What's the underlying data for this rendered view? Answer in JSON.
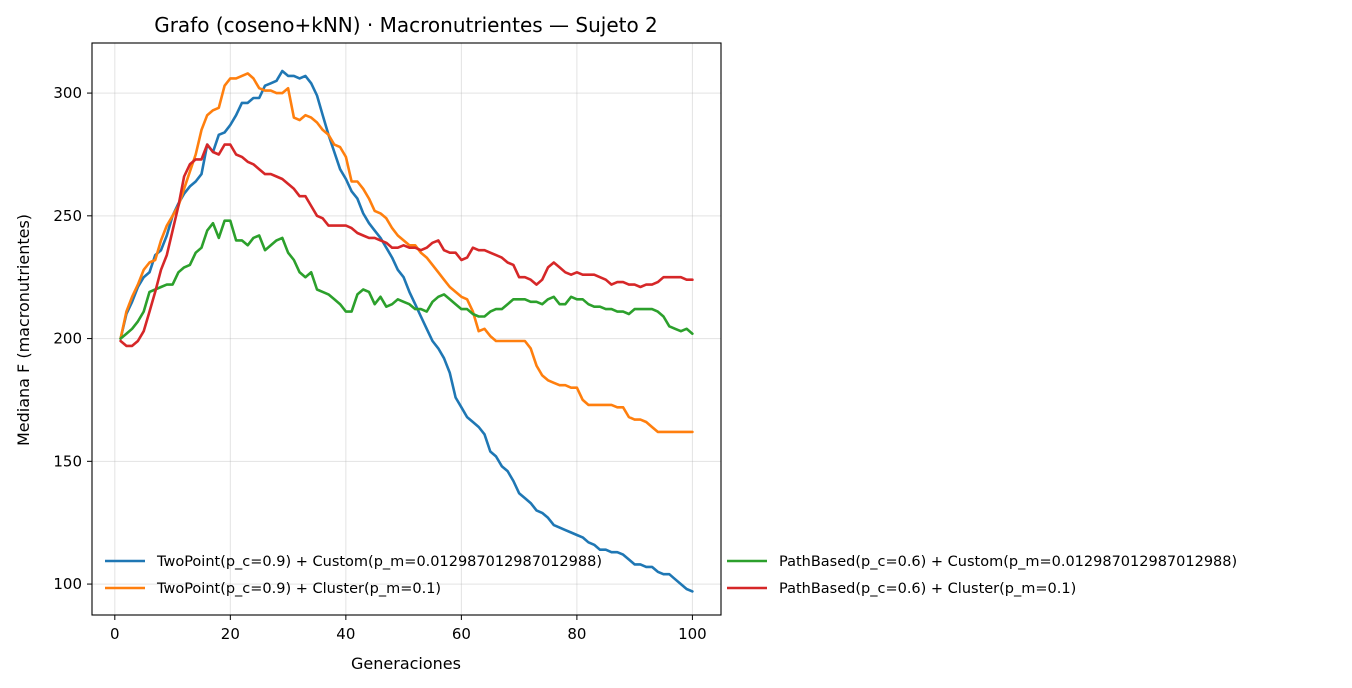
{
  "chart_data": {
    "type": "line",
    "title": "Grafo (coseno+kNN) · Macronutrientes — Sujeto 2",
    "xlabel": "Generaciones",
    "ylabel": "Mediana F (macronutrientes)",
    "xlim": [
      -3.95,
      104.95
    ],
    "ylim": [
      87.4,
      320.4
    ],
    "xticks": [
      0,
      20,
      40,
      60,
      80,
      100
    ],
    "xtick_labels": [
      "0",
      "20",
      "40",
      "60",
      "80",
      "100"
    ],
    "yticks": [
      100,
      150,
      200,
      250,
      300
    ],
    "ytick_labels": [
      "100",
      "150",
      "200",
      "250",
      "300"
    ],
    "grid": true,
    "legend_position": "bottom, spanning outside right",
    "series": [
      {
        "name": "TwoPoint(p_c=0.9) + Custom(p_m=0.012987012987012988)",
        "color": "#1f77b4",
        "x": [
          1,
          2,
          3,
          4,
          5,
          6,
          7,
          8,
          9,
          10,
          11,
          12,
          13,
          14,
          15,
          16,
          17,
          18,
          19,
          20,
          21,
          22,
          23,
          24,
          25,
          26,
          27,
          28,
          29,
          30,
          31,
          32,
          33,
          34,
          35,
          36,
          37,
          38,
          39,
          40,
          41,
          42,
          43,
          44,
          45,
          46,
          47,
          48,
          49,
          50,
          51,
          52,
          53,
          54,
          55,
          56,
          57,
          58,
          59,
          60,
          61,
          62,
          63,
          64,
          65,
          66,
          67,
          68,
          69,
          70,
          71,
          72,
          73,
          74,
          75,
          76,
          77,
          78,
          79,
          80,
          81,
          82,
          83,
          84,
          85,
          86,
          87,
          88,
          89,
          90,
          91,
          92,
          93,
          94,
          95,
          96,
          97,
          98,
          99,
          100
        ],
        "values": [
          200,
          210,
          215,
          221,
          225,
          227,
          234,
          236,
          242,
          250,
          255,
          259,
          262,
          264,
          267,
          279,
          276,
          283,
          284,
          287,
          291,
          296,
          296,
          298,
          298,
          303,
          304,
          305,
          309,
          307,
          307,
          306,
          307,
          304,
          299,
          291,
          283,
          276,
          269,
          265,
          260,
          257,
          251,
          247,
          244,
          241,
          237,
          233,
          228,
          225,
          219,
          214,
          209,
          204,
          199,
          196,
          192,
          186,
          176,
          172,
          168,
          166,
          164,
          161,
          154,
          152,
          148,
          146,
          142,
          137,
          135,
          133,
          130,
          129,
          127,
          124,
          123,
          122,
          121,
          120,
          119,
          117,
          116,
          114,
          114,
          113,
          113,
          112,
          110,
          108,
          108,
          107,
          107,
          105,
          104,
          104,
          102,
          100,
          98,
          97
        ]
      },
      {
        "name": "TwoPoint(p_c=0.9) + Cluster(p_m=0.1)",
        "color": "#ff7f0e",
        "x": [
          1,
          2,
          3,
          4,
          5,
          6,
          7,
          8,
          9,
          10,
          11,
          12,
          13,
          14,
          15,
          16,
          17,
          18,
          19,
          20,
          21,
          22,
          23,
          24,
          25,
          26,
          27,
          28,
          29,
          30,
          31,
          32,
          33,
          34,
          35,
          36,
          37,
          38,
          39,
          40,
          41,
          42,
          43,
          44,
          45,
          46,
          47,
          48,
          49,
          50,
          51,
          52,
          53,
          54,
          55,
          56,
          57,
          58,
          59,
          60,
          61,
          62,
          63,
          64,
          65,
          66,
          67,
          68,
          69,
          70,
          71,
          72,
          73,
          74,
          75,
          76,
          77,
          78,
          79,
          80,
          81,
          82,
          83,
          84,
          85,
          86,
          87,
          88,
          89,
          90,
          91,
          92,
          93,
          94,
          95,
          96,
          97,
          98,
          99,
          100
        ],
        "values": [
          200,
          211,
          217,
          222,
          228,
          231,
          232,
          240,
          246,
          250,
          254,
          261,
          268,
          275,
          285,
          291,
          293,
          294,
          303,
          306,
          306,
          307,
          308,
          306,
          302,
          301,
          301,
          300,
          300,
          302,
          290,
          289,
          291,
          290,
          288,
          285,
          283,
          279,
          278,
          274,
          264,
          264,
          261,
          257,
          252,
          251,
          249,
          245,
          242,
          240,
          238,
          238,
          235,
          233,
          230,
          227,
          224,
          221,
          219,
          217,
          216,
          211,
          203,
          204,
          201,
          199,
          199,
          199,
          199,
          199,
          199,
          196,
          189,
          185,
          183,
          182,
          181,
          181,
          180,
          180,
          175,
          173,
          173,
          173,
          173,
          173,
          172,
          172,
          168,
          167,
          167,
          166,
          164,
          162,
          162,
          162,
          162,
          162,
          162,
          162
        ]
      },
      {
        "name": "PathBased(p_c=0.6) + Custom(p_m=0.012987012987012988)",
        "color": "#2ca02c",
        "x": [
          1,
          2,
          3,
          4,
          5,
          6,
          7,
          8,
          9,
          10,
          11,
          12,
          13,
          14,
          15,
          16,
          17,
          18,
          19,
          20,
          21,
          22,
          23,
          24,
          25,
          26,
          27,
          28,
          29,
          30,
          31,
          32,
          33,
          34,
          35,
          36,
          37,
          38,
          39,
          40,
          41,
          42,
          43,
          44,
          45,
          46,
          47,
          48,
          49,
          50,
          51,
          52,
          53,
          54,
          55,
          56,
          57,
          58,
          59,
          60,
          61,
          62,
          63,
          64,
          65,
          66,
          67,
          68,
          69,
          70,
          71,
          72,
          73,
          74,
          75,
          76,
          77,
          78,
          79,
          80,
          81,
          82,
          83,
          84,
          85,
          86,
          87,
          88,
          89,
          90,
          91,
          92,
          93,
          94,
          95,
          96,
          97,
          98,
          99,
          100
        ],
        "values": [
          200,
          202,
          204,
          207,
          211,
          219,
          220,
          221,
          222,
          222,
          227,
          229,
          230,
          235,
          237,
          244,
          247,
          241,
          248,
          248,
          240,
          240,
          238,
          241,
          242,
          236,
          238,
          240,
          241,
          235,
          232,
          227,
          225,
          227,
          220,
          219,
          218,
          216,
          214,
          211,
          211,
          218,
          220,
          219,
          214,
          217,
          213,
          214,
          216,
          215,
          214,
          212,
          212,
          211,
          215,
          217,
          218,
          216,
          214,
          212,
          212,
          210,
          209,
          209,
          211,
          212,
          212,
          214,
          216,
          216,
          216,
          215,
          215,
          214,
          216,
          217,
          214,
          214,
          217,
          216,
          216,
          214,
          213,
          213,
          212,
          212,
          211,
          211,
          210,
          212,
          212,
          212,
          212,
          211,
          209,
          205,
          204,
          203,
          204,
          202
        ]
      },
      {
        "name": "PathBased(p_c=0.6) + Cluster(p_m=0.1)",
        "color": "#d62728",
        "x": [
          1,
          2,
          3,
          4,
          5,
          6,
          7,
          8,
          9,
          10,
          11,
          12,
          13,
          14,
          15,
          16,
          17,
          18,
          19,
          20,
          21,
          22,
          23,
          24,
          25,
          26,
          27,
          28,
          29,
          30,
          31,
          32,
          33,
          34,
          35,
          36,
          37,
          38,
          39,
          40,
          41,
          42,
          43,
          44,
          45,
          46,
          47,
          48,
          49,
          50,
          51,
          52,
          53,
          54,
          55,
          56,
          57,
          58,
          59,
          60,
          61,
          62,
          63,
          64,
          65,
          66,
          67,
          68,
          69,
          70,
          71,
          72,
          73,
          74,
          75,
          76,
          77,
          78,
          79,
          80,
          81,
          82,
          83,
          84,
          85,
          86,
          87,
          88,
          89,
          90,
          91,
          92,
          93,
          94,
          95,
          96,
          97,
          98,
          99,
          100
        ],
        "values": [
          199,
          197,
          197,
          199,
          203,
          211,
          219,
          228,
          234,
          244,
          254,
          266,
          271,
          273,
          273,
          279,
          276,
          275,
          279,
          279,
          275,
          274,
          272,
          271,
          269,
          267,
          267,
          266,
          265,
          263,
          261,
          258,
          258,
          254,
          250,
          249,
          246,
          246,
          246,
          246,
          245,
          243,
          242,
          241,
          241,
          240,
          239,
          237,
          237,
          238,
          237,
          237,
          236,
          237,
          239,
          240,
          236,
          235,
          235,
          232,
          233,
          237,
          236,
          236,
          235,
          234,
          233,
          231,
          230,
          225,
          225,
          224,
          222,
          224,
          229,
          231,
          229,
          227,
          226,
          227,
          226,
          226,
          226,
          225,
          224,
          222,
          223,
          223,
          222,
          222,
          221,
          222,
          222,
          223,
          225,
          225,
          225,
          225,
          224,
          224
        ]
      }
    ]
  }
}
